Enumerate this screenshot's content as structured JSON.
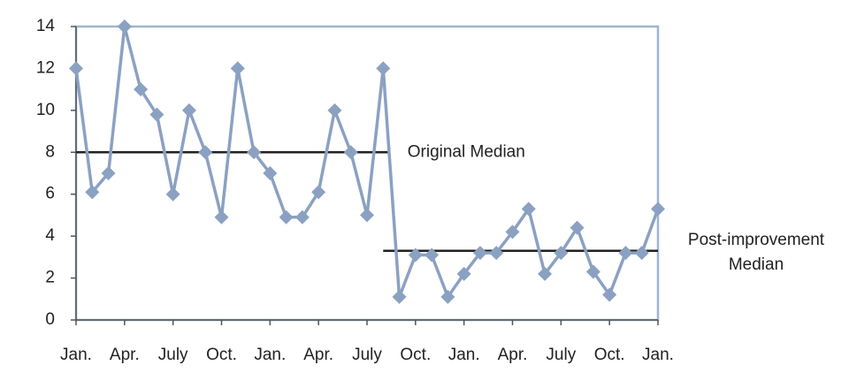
{
  "chart_data": {
    "type": "line",
    "categories": [
      "Jan.",
      null,
      null,
      "Apr.",
      null,
      null,
      "July",
      null,
      null,
      "Oct.",
      null,
      null,
      "Jan.",
      null,
      null,
      "Apr.",
      null,
      null,
      "July",
      null,
      null,
      "Oct.",
      null,
      null,
      "Jan.",
      null,
      null,
      "Apr.",
      null,
      null,
      "July",
      null,
      null,
      "Oct.",
      null,
      null,
      "Jan."
    ],
    "series": [
      {
        "color": "#8ba1c2",
        "values": [
          12,
          6.1,
          7,
          14,
          11,
          9.8,
          6,
          10,
          8,
          4.9,
          12,
          8,
          7,
          4.9,
          4.9,
          6.1,
          10,
          8,
          5,
          12,
          1.1,
          3.1,
          3.1,
          1.1,
          2.2,
          3.2,
          3.2,
          4.2,
          5.3,
          2.2,
          3.2,
          4.4,
          2.3,
          1.2,
          3.2,
          3.2,
          5.3
        ]
      }
    ],
    "ylim": [
      0,
      14
    ],
    "yticks": [
      0,
      2,
      4,
      6,
      8,
      10,
      12,
      14
    ],
    "reference_lines": [
      {
        "label_lines": [
          "Original Median"
        ],
        "value": 8,
        "span": [
          0,
          19.3
        ]
      },
      {
        "label_lines": [
          "Post-improvement",
          "Median"
        ],
        "value": 3.3,
        "span": [
          19,
          36
        ]
      }
    ]
  }
}
